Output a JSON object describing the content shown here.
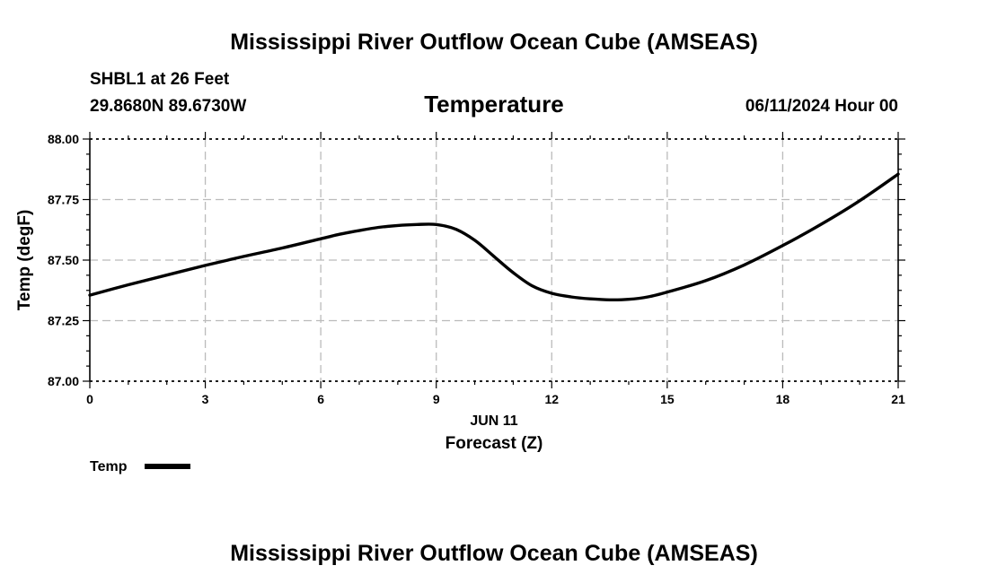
{
  "header": {
    "title": "Mississippi River Outflow Ocean Cube (AMSEAS)",
    "station": "SHBL1 at 26 Feet",
    "coords": "29.8680N  89.6730W",
    "datetime": "06/11/2024 Hour 00"
  },
  "footer": {
    "title": "Mississippi River Outflow Ocean Cube (AMSEAS)"
  },
  "chart_data": {
    "type": "line",
    "title": "Temperature",
    "ylabel": "Temp (degF)",
    "xlabel": "Forecast (Z)",
    "date_label": "JUN 11",
    "xlim": [
      0,
      21
    ],
    "ylim": [
      87.0,
      88.0
    ],
    "xticks": [
      0,
      3,
      6,
      9,
      12,
      15,
      18,
      21
    ],
    "xtick_labels": [
      "0",
      "3",
      "6",
      "9",
      "12",
      "15",
      "18",
      "21"
    ],
    "yticks": [
      87.0,
      87.25,
      87.5,
      87.75,
      88.0
    ],
    "ytick_labels": [
      "87.00",
      "87.25",
      "87.50",
      "87.75",
      "88.00"
    ],
    "grid": true,
    "series": [
      {
        "name": "Temp",
        "color": "#000000",
        "x": [
          0,
          1,
          2,
          3,
          4,
          5,
          6,
          6.5,
          7,
          7.5,
          8,
          8.5,
          9,
          9.5,
          10,
          10.5,
          11,
          11.5,
          12,
          12.5,
          13,
          13.5,
          14,
          14.5,
          15,
          16,
          17,
          18,
          19,
          20,
          21
        ],
        "values": [
          87.355,
          87.398,
          87.438,
          87.478,
          87.515,
          87.55,
          87.588,
          87.607,
          87.622,
          87.635,
          87.643,
          87.647,
          87.647,
          87.628,
          87.582,
          87.515,
          87.448,
          87.393,
          87.363,
          87.348,
          87.34,
          87.336,
          87.338,
          87.348,
          87.368,
          87.415,
          87.48,
          87.56,
          87.648,
          87.745,
          87.855
        ]
      }
    ],
    "legend": {
      "label": "Temp",
      "placement": "bottom-left"
    }
  }
}
